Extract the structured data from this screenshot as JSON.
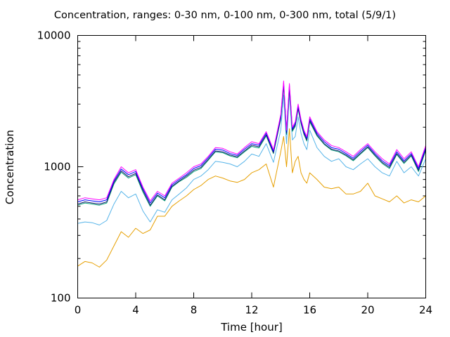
{
  "chart_data": {
    "type": "line",
    "title": "Concentration, ranges: 0-30 nm, 0-100 nm, 0-300 nm, total (5/9/1)",
    "xlabel": "Time [hour]",
    "ylabel": "Concentration",
    "xlim": [
      0,
      24
    ],
    "ylim": [
      100,
      10000
    ],
    "yscale": "log",
    "xticks": [
      "0",
      "4",
      "8",
      "12",
      "16",
      "20",
      "24"
    ],
    "yticks": [
      "100",
      "1000",
      "10000"
    ],
    "grid": false,
    "legend": "none",
    "series": [
      {
        "color": "#ff00ff",
        "x": [
          0,
          0.5,
          1,
          1.5,
          2,
          2.5,
          3,
          3.5,
          4,
          4.5,
          5,
          5.5,
          6,
          6.5,
          7,
          7.5,
          8,
          8.5,
          9,
          9.5,
          10,
          10.5,
          11,
          11.5,
          12,
          12.5,
          13,
          13.5,
          14,
          14.2,
          14.4,
          14.6,
          14.8,
          15,
          15.2,
          15.4,
          15.6,
          15.8,
          16,
          16.5,
          17,
          17.5,
          18,
          18.5,
          19,
          19.5,
          20,
          20.5,
          21,
          21.5,
          22,
          22.5,
          23,
          23.5,
          24
        ],
        "values": [
          560,
          580,
          570,
          560,
          580,
          800,
          1000,
          900,
          950,
          700,
          550,
          650,
          600,
          750,
          820,
          900,
          1000,
          1050,
          1200,
          1400,
          1380,
          1300,
          1250,
          1400,
          1550,
          1500,
          1850,
          1350,
          2500,
          4500,
          1900,
          4300,
          2000,
          2200,
          3000,
          2300,
          1900,
          1700,
          2400,
          1850,
          1600,
          1450,
          1400,
          1300,
          1200,
          1350,
          1500,
          1300,
          1150,
          1050,
          1350,
          1150,
          1300,
          1000,
          1450
        ]
      },
      {
        "color": "#0000ff",
        "x": [
          0,
          0.5,
          1,
          1.5,
          2,
          2.5,
          3,
          3.5,
          4,
          4.5,
          5,
          5.5,
          6,
          6.5,
          7,
          7.5,
          8,
          8.5,
          9,
          9.5,
          10,
          10.5,
          11,
          11.5,
          12,
          12.5,
          13,
          13.5,
          14,
          14.2,
          14.4,
          14.6,
          14.8,
          15,
          15.2,
          15.4,
          15.6,
          15.8,
          16,
          16.5,
          17,
          17.5,
          18,
          18.5,
          19,
          19.5,
          20,
          20.5,
          21,
          21.5,
          22,
          22.5,
          23,
          23.5,
          24
        ],
        "values": [
          540,
          560,
          550,
          540,
          560,
          780,
          960,
          870,
          920,
          680,
          530,
          630,
          580,
          730,
          800,
          870,
          970,
          1020,
          1170,
          1360,
          1340,
          1260,
          1220,
          1360,
          1500,
          1460,
          1800,
          1310,
          2420,
          4350,
          1850,
          4150,
          1950,
          2130,
          2900,
          2230,
          1840,
          1650,
          2320,
          1800,
          1550,
          1400,
          1360,
          1260,
          1160,
          1310,
          1460,
          1260,
          1110,
          1020,
          1300,
          1110,
          1260,
          970,
          1400
        ]
      },
      {
        "color": "#1c1c6e",
        "x": [
          0,
          0.5,
          1,
          1.5,
          2,
          2.5,
          3,
          3.5,
          4,
          4.5,
          5,
          5.5,
          6,
          6.5,
          7,
          7.5,
          8,
          8.5,
          9,
          9.5,
          10,
          10.5,
          11,
          11.5,
          12,
          12.5,
          13,
          13.5,
          14,
          14.2,
          14.4,
          14.6,
          14.8,
          15,
          15.2,
          15.4,
          15.6,
          15.8,
          16,
          16.5,
          17,
          17.5,
          18,
          18.5,
          19,
          19.5,
          20,
          20.5,
          21,
          21.5,
          22,
          22.5,
          23,
          23.5,
          24
        ],
        "values": [
          520,
          540,
          530,
          520,
          540,
          760,
          930,
          840,
          890,
          660,
          510,
          610,
          560,
          710,
          780,
          850,
          940,
          990,
          1140,
          1320,
          1300,
          1230,
          1190,
          1320,
          1460,
          1420,
          1750,
          1280,
          2350,
          4200,
          1800,
          4000,
          1900,
          2070,
          2820,
          2170,
          1790,
          1600,
          2250,
          1750,
          1500,
          1360,
          1320,
          1230,
          1130,
          1270,
          1420,
          1230,
          1080,
          990,
          1260,
          1080,
          1230,
          940,
          1360
        ]
      },
      {
        "color": "#009e73",
        "x": [
          0,
          0.5,
          1,
          1.5,
          2,
          2.5,
          3,
          3.5,
          4,
          4.5,
          5,
          5.5,
          6,
          6.5,
          7,
          7.5,
          8,
          8.5,
          9,
          9.5,
          10,
          10.5,
          11,
          11.5,
          12,
          12.5,
          13,
          13.5,
          14,
          14.2,
          14.4,
          14.6,
          14.8,
          15,
          15.2,
          15.4,
          15.6,
          15.8,
          16,
          16.5,
          17,
          17.5,
          18,
          18.5,
          19,
          19.5,
          20,
          20.5,
          21,
          21.5,
          22,
          22.5,
          23,
          23.5,
          24
        ],
        "values": [
          510,
          530,
          520,
          510,
          530,
          740,
          910,
          820,
          870,
          640,
          500,
          600,
          550,
          700,
          770,
          830,
          920,
          970,
          1120,
          1300,
          1280,
          1210,
          1170,
          1300,
          1430,
          1390,
          1720,
          1260,
          2300,
          4100,
          1760,
          3900,
          1860,
          2030,
          2760,
          2130,
          1760,
          1570,
          2200,
          1720,
          1480,
          1340,
          1300,
          1210,
          1110,
          1250,
          1400,
          1210,
          1060,
          970,
          1240,
          1060,
          1210,
          920,
          1330
        ]
      },
      {
        "color": "#56b4e9",
        "x": [
          0,
          0.5,
          1,
          1.5,
          2,
          2.5,
          3,
          3.5,
          4,
          4.5,
          5,
          5.5,
          6,
          6.5,
          7,
          7.5,
          8,
          8.5,
          9,
          9.5,
          10,
          10.5,
          11,
          11.5,
          12,
          12.5,
          13,
          13.5,
          14,
          14.2,
          14.4,
          14.6,
          14.8,
          15,
          15.2,
          15.4,
          15.6,
          15.8,
          16,
          16.5,
          17,
          17.5,
          18,
          18.5,
          19,
          19.5,
          20,
          20.5,
          21,
          21.5,
          22,
          22.5,
          23,
          23.5,
          24
        ],
        "values": [
          370,
          380,
          375,
          360,
          390,
          520,
          650,
          580,
          620,
          460,
          380,
          470,
          450,
          560,
          620,
          690,
          800,
          850,
          950,
          1100,
          1080,
          1050,
          1000,
          1100,
          1250,
          1200,
          1500,
          1080,
          1900,
          3500,
          1500,
          3600,
          1600,
          1700,
          2400,
          1800,
          1500,
          1350,
          1900,
          1400,
          1200,
          1100,
          1150,
          1000,
          950,
          1050,
          1150,
          1000,
          900,
          850,
          1100,
          900,
          1000,
          850,
          1150
        ]
      },
      {
        "color": "#e69f00",
        "x": [
          0,
          0.5,
          1,
          1.5,
          2,
          2.5,
          3,
          3.5,
          4,
          4.5,
          5,
          5.5,
          6,
          6.5,
          7,
          7.5,
          8,
          8.5,
          9,
          9.5,
          10,
          10.5,
          11,
          11.5,
          12,
          12.5,
          13,
          13.5,
          14,
          14.2,
          14.4,
          14.6,
          14.8,
          15,
          15.2,
          15.4,
          15.6,
          15.8,
          16,
          16.5,
          17,
          17.5,
          18,
          18.5,
          19,
          19.5,
          20,
          20.5,
          21,
          21.5,
          22,
          22.5,
          23,
          23.5,
          24
        ],
        "values": [
          175,
          190,
          185,
          172,
          195,
          250,
          320,
          290,
          340,
          310,
          330,
          420,
          420,
          500,
          550,
          600,
          670,
          720,
          800,
          850,
          820,
          780,
          760,
          800,
          900,
          950,
          1050,
          700,
          1300,
          1700,
          1000,
          1950,
          900,
          1100,
          1200,
          900,
          800,
          750,
          900,
          800,
          700,
          680,
          700,
          620,
          620,
          650,
          750,
          600,
          570,
          540,
          600,
          530,
          560,
          540,
          600
        ]
      }
    ]
  }
}
